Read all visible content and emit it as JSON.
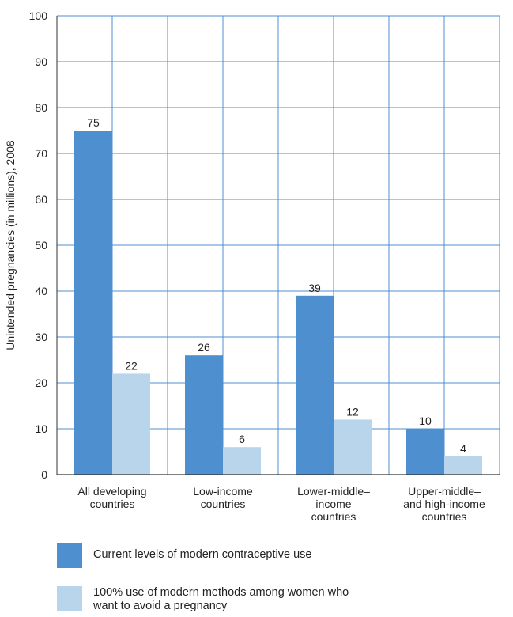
{
  "chart_data": {
    "type": "bar",
    "ylabel": "Unintended pregnancies (in millions), 2008",
    "xlabel": "",
    "ylim": [
      0,
      100
    ],
    "yticks": [
      0,
      10,
      20,
      30,
      40,
      50,
      60,
      70,
      80,
      90,
      100
    ],
    "grid": true,
    "legend_position": "bottom",
    "categories": [
      [
        "All developing",
        "countries"
      ],
      [
        "Low-income",
        "countries"
      ],
      [
        "Lower-middle–",
        "income",
        "countries"
      ],
      [
        "Upper-middle–",
        "and high-income",
        "countries"
      ]
    ],
    "series": [
      {
        "name": "Current levels of modern contraceptive use",
        "color": "#4e8fd0",
        "values": [
          75,
          26,
          39,
          10
        ]
      },
      {
        "name": "100% use of modern methods among women who want to avoid a pregnancy",
        "color": "#b9d5ec",
        "values": [
          22,
          6,
          12,
          4
        ]
      }
    ],
    "colors": {
      "grid": "#4e8fd0",
      "axis": "#333333"
    }
  },
  "legend": [
    {
      "lines": [
        "Current levels of modern contraceptive use"
      ]
    },
    {
      "lines": [
        "100% use of modern methods among women who",
        "want to avoid a pregnancy"
      ]
    }
  ]
}
